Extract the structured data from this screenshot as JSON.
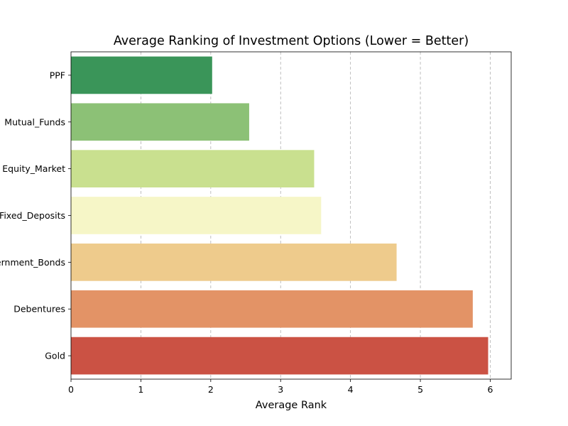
{
  "chart_data": {
    "type": "bar",
    "orientation": "horizontal",
    "title": "Average Ranking of Investment Options (Lower = Better)",
    "xlabel": "Average Rank",
    "ylabel": "",
    "categories": [
      "PPF",
      "Mutual_Funds",
      "Equity_Market",
      "Fixed_Deposits",
      "Government_Bonds",
      "Debentures",
      "Gold"
    ],
    "values": [
      2.02,
      2.55,
      3.48,
      3.58,
      4.66,
      5.75,
      5.97
    ],
    "colors": [
      "#3a9559",
      "#8cc176",
      "#c9e08f",
      "#f6f6c7",
      "#eecb8c",
      "#e39366",
      "#cb5244"
    ],
    "xlim": [
      0,
      6.3
    ],
    "xticks": [
      0,
      1,
      2,
      3,
      4,
      5,
      6
    ],
    "grid": "x-dashed",
    "legend": "none"
  }
}
